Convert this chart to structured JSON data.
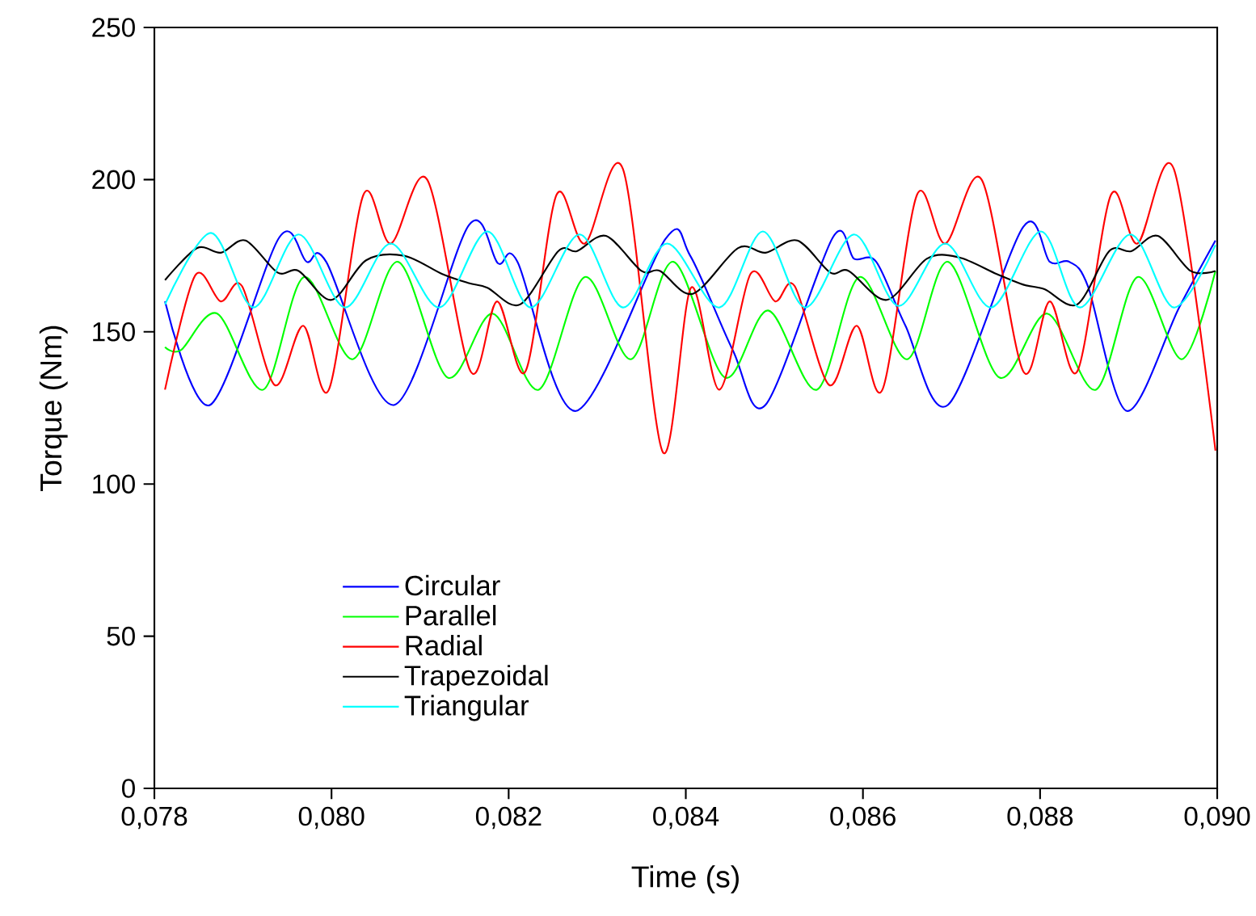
{
  "chart_data": {
    "type": "line",
    "xlabel": "Time (s)",
    "ylabel": "Torque (Nm)",
    "xlim": [
      0.078,
      0.09
    ],
    "ylim": [
      0,
      250
    ],
    "xticks": [
      {
        "value": 0.078,
        "label": "0,078"
      },
      {
        "value": 0.08,
        "label": "0,080"
      },
      {
        "value": 0.082,
        "label": "0,082"
      },
      {
        "value": 0.084,
        "label": "0,084"
      },
      {
        "value": 0.086,
        "label": "0,086"
      },
      {
        "value": 0.088,
        "label": "0,088"
      },
      {
        "value": 0.09,
        "label": "0,090"
      }
    ],
    "yticks": [
      0,
      50,
      100,
      150,
      200,
      250
    ],
    "grid": false,
    "legend": "bottom left",
    "marker": "none",
    "line_style": "solid",
    "series": [
      {
        "name": "Circular",
        "color": "#0000ff",
        "x": [
          0.07812,
          0.07863,
          0.07941,
          0.07972,
          0.07994,
          0.08071,
          0.08155,
          0.08188,
          0.0821,
          0.08276,
          0.08377,
          0.08405,
          0.08453,
          0.0849,
          0.08566,
          0.0859,
          0.08615,
          0.08648,
          0.08696,
          0.08781,
          0.08811,
          0.08833,
          0.08854,
          0.08898,
          0.08957,
          0.08998
        ],
        "values": [
          160,
          126,
          181,
          173,
          173,
          126,
          185,
          172.5,
          173,
          124,
          180.5,
          175,
          144,
          126,
          181,
          174,
          173,
          152,
          126,
          184.5,
          173,
          173,
          165,
          124,
          158,
          180
        ]
      },
      {
        "name": "Parallel",
        "color": "#00ff00",
        "x": [
          0.07812,
          0.0783,
          0.07871,
          0.07923,
          0.07969,
          0.08024,
          0.08075,
          0.08131,
          0.08182,
          0.08234,
          0.08286,
          0.08338,
          0.08386,
          0.08444,
          0.08493,
          0.08548,
          0.08596,
          0.0865,
          0.08696,
          0.08754,
          0.08808,
          0.08863,
          0.0891,
          0.0896,
          0.08998
        ],
        "values": [
          145,
          144,
          156,
          131,
          168,
          141,
          173,
          135,
          156,
          131,
          168,
          141,
          173,
          135,
          157,
          131,
          168,
          141,
          173,
          135,
          156,
          131,
          168,
          141,
          170
        ]
      },
      {
        "name": "Radial",
        "color": "#ff0000",
        "x": [
          0.07812,
          0.07846,
          0.07875,
          0.07899,
          0.07936,
          0.07968,
          0.07997,
          0.08036,
          0.08067,
          0.08108,
          0.08157,
          0.08187,
          0.08219,
          0.08254,
          0.08286,
          0.08329,
          0.08374,
          0.08406,
          0.08438,
          0.08473,
          0.08501,
          0.08523,
          0.08562,
          0.08593,
          0.08622,
          0.08661,
          0.08693,
          0.08734,
          0.08781,
          0.08811,
          0.08842,
          0.0888,
          0.0891,
          0.08951,
          0.08998
        ],
        "values": [
          131,
          168.5,
          160,
          165,
          132.5,
          152,
          131,
          195,
          179,
          200,
          137,
          160,
          137,
          195,
          179,
          203.5,
          110.5,
          164.5,
          131,
          169,
          160,
          165,
          132.5,
          152,
          131,
          195,
          179,
          200,
          137,
          160,
          137,
          195,
          179,
          203.5,
          111
        ]
      },
      {
        "name": "Trapezoidal",
        "color": "#000000",
        "x": [
          0.07812,
          0.07848,
          0.07875,
          0.07903,
          0.07939,
          0.07963,
          0.08,
          0.08039,
          0.08082,
          0.08125,
          0.08155,
          0.08176,
          0.08213,
          0.08256,
          0.08277,
          0.0831,
          0.0835,
          0.08371,
          0.08408,
          0.08459,
          0.0849,
          0.08526,
          0.08563,
          0.08584,
          0.08627,
          0.08672,
          0.08708,
          0.08751,
          0.08781,
          0.08805,
          0.08842,
          0.08878,
          0.08903,
          0.08933,
          0.0897,
          0.08998
        ],
        "values": [
          167,
          177.5,
          176,
          180,
          169.5,
          170,
          160.5,
          173.5,
          175,
          169,
          166,
          164.5,
          159,
          176.5,
          176.5,
          181.5,
          170,
          170,
          162.5,
          177.5,
          176,
          180,
          169.5,
          170,
          160.5,
          174,
          174.5,
          169,
          165.5,
          164,
          159,
          176.5,
          176.5,
          181.5,
          170,
          170
        ]
      },
      {
        "name": "Triangular",
        "color": "#00ffff",
        "x": [
          0.07812,
          0.07864,
          0.07912,
          0.07963,
          0.08015,
          0.08067,
          0.08122,
          0.08176,
          0.08225,
          0.0828,
          0.08329,
          0.08379,
          0.08438,
          0.08487,
          0.08535,
          0.0859,
          0.0864,
          0.08693,
          0.08745,
          0.08801,
          0.08845,
          0.08902,
          0.08951,
          0.08998
        ],
        "values": [
          159,
          182.5,
          158,
          182,
          158,
          179,
          158,
          183,
          158,
          182,
          158,
          179,
          158,
          183,
          158,
          182,
          158.5,
          179,
          158,
          183,
          158,
          182,
          158,
          178.5
        ]
      }
    ]
  }
}
